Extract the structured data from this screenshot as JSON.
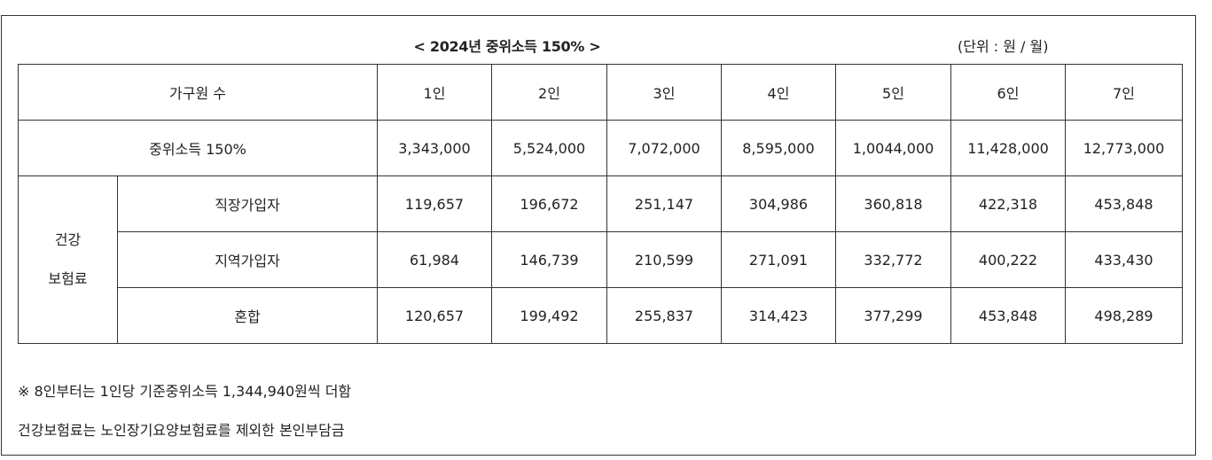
{
  "title": "< 2024년 중위소득 150% >",
  "unit": "(단위 : 원 / 월)",
  "header": {
    "label": "가구원 수",
    "columns": [
      "1인",
      "2인",
      "3인",
      "4인",
      "5인",
      "6인",
      "7인"
    ]
  },
  "median_row": {
    "label": "중위소득 150%",
    "values": [
      "3,343,000",
      "5,524,000",
      "7,072,000",
      "8,595,000",
      "1,0044,000",
      "11,428,000",
      "12,773,000"
    ]
  },
  "insurance": {
    "group_line1": "건강",
    "group_line2": "보험료",
    "rows": [
      {
        "label": "직장가입자",
        "values": [
          "119,657",
          "196,672",
          "251,147",
          "304,986",
          "360,818",
          "422,318",
          "453,848"
        ]
      },
      {
        "label": "지역가입자",
        "values": [
          "61,984",
          "146,739",
          "210,599",
          "271,091",
          "332,772",
          "400,222",
          "433,430"
        ]
      },
      {
        "label": "혼합",
        "values": [
          "120,657",
          "199,492",
          "255,837",
          "314,423",
          "377,299",
          "453,848",
          "498,289"
        ]
      }
    ]
  },
  "notes": [
    "※ 8인부터는 1인당 기준중위소득 1,344,940원씩 더함",
    "건강보험료는 노인장기요양보험료를 제외한 본인부담금"
  ]
}
